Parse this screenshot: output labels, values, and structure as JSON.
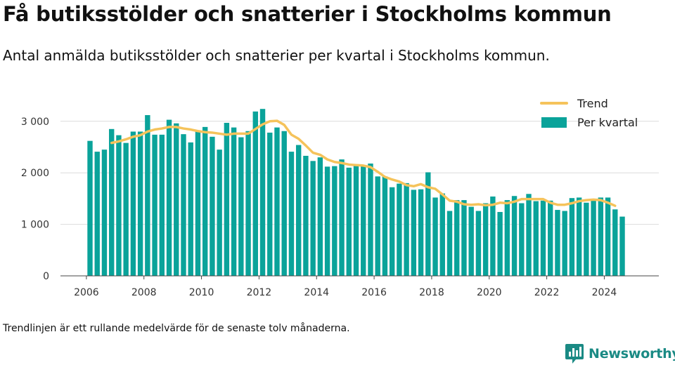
{
  "title": "Få butiksstölder och snatterier i Stockholms kommun",
  "subtitle": "Antal anmälda butiksstölder och snatterier per kvartal i Stockholms kommun.",
  "footnote": "Trendlinjen är ett rullande medelvärde för de senaste tolv månaderna.",
  "brand": {
    "name": "Newsworthy",
    "icon": "bar-chart-speech-bubble-icon",
    "color": "#1a8a84"
  },
  "chart_data": {
    "type": "bar",
    "x_tick_labels": [
      "2006",
      "2008",
      "2010",
      "2012",
      "2014",
      "2016",
      "2018",
      "2020",
      "2022",
      "2024"
    ],
    "y_tick_labels": [
      "0",
      "1 000",
      "2 000",
      "3 000"
    ],
    "ylim": [
      0,
      3450
    ],
    "grid": true,
    "legend_position": "top-right",
    "series": [
      {
        "name": "Per kvartal",
        "kind": "bar",
        "color": "#0aa39a",
        "categories": [
          "2006 Q1",
          "2006 Q2",
          "2006 Q3",
          "2006 Q4",
          "2007 Q1",
          "2007 Q2",
          "2007 Q3",
          "2007 Q4",
          "2008 Q1",
          "2008 Q2",
          "2008 Q3",
          "2008 Q4",
          "2009 Q1",
          "2009 Q2",
          "2009 Q3",
          "2009 Q4",
          "2010 Q1",
          "2010 Q2",
          "2010 Q3",
          "2010 Q4",
          "2011 Q1",
          "2011 Q2",
          "2011 Q3",
          "2011 Q4",
          "2012 Q1",
          "2012 Q2",
          "2012 Q3",
          "2012 Q4",
          "2013 Q1",
          "2013 Q2",
          "2013 Q3",
          "2013 Q4",
          "2014 Q1",
          "2014 Q2",
          "2014 Q3",
          "2014 Q4",
          "2015 Q1",
          "2015 Q2",
          "2015 Q3",
          "2015 Q4",
          "2016 Q1",
          "2016 Q2",
          "2016 Q3",
          "2016 Q4",
          "2017 Q1",
          "2017 Q2",
          "2017 Q3",
          "2017 Q4",
          "2018 Q1",
          "2018 Q2",
          "2018 Q3",
          "2018 Q4",
          "2019 Q1",
          "2019 Q2",
          "2019 Q3",
          "2019 Q4",
          "2020 Q1",
          "2020 Q2",
          "2020 Q3",
          "2020 Q4",
          "2021 Q1",
          "2021 Q2",
          "2021 Q3",
          "2021 Q4",
          "2022 Q1",
          "2022 Q2",
          "2022 Q3",
          "2022 Q4",
          "2023 Q1",
          "2023 Q2",
          "2023 Q3",
          "2023 Q4",
          "2024 Q1",
          "2024 Q2",
          "2024 Q3"
        ],
        "values": [
          2620,
          2410,
          2450,
          2850,
          2730,
          2580,
          2800,
          2800,
          3120,
          2740,
          2740,
          3030,
          2960,
          2750,
          2590,
          2820,
          2890,
          2700,
          2450,
          2970,
          2880,
          2690,
          2810,
          3190,
          3240,
          2780,
          2880,
          2810,
          2410,
          2540,
          2330,
          2230,
          2300,
          2120,
          2130,
          2260,
          2100,
          2140,
          2140,
          2180,
          1930,
          1930,
          1720,
          1790,
          1800,
          1670,
          1680,
          2010,
          1520,
          1600,
          1260,
          1470,
          1470,
          1340,
          1260,
          1410,
          1540,
          1240,
          1470,
          1550,
          1410,
          1590,
          1450,
          1460,
          1460,
          1280,
          1260,
          1510,
          1520,
          1420,
          1460,
          1520,
          1520,
          1290,
          1150
        ]
      },
      {
        "name": "Trend",
        "kind": "line",
        "color": "#f5c35b",
        "start_category": "2006 Q4",
        "values": [
          2580,
          2610,
          2650,
          2700,
          2730,
          2800,
          2840,
          2860,
          2890,
          2890,
          2860,
          2840,
          2810,
          2790,
          2780,
          2760,
          2740,
          2760,
          2760,
          2760,
          2850,
          2940,
          3000,
          3010,
          2930,
          2740,
          2660,
          2530,
          2390,
          2350,
          2260,
          2210,
          2190,
          2160,
          2150,
          2140,
          2110,
          2020,
          1920,
          1870,
          1830,
          1760,
          1740,
          1780,
          1720,
          1690,
          1580,
          1460,
          1440,
          1390,
          1380,
          1390,
          1370,
          1380,
          1420,
          1410,
          1440,
          1490,
          1490,
          1490,
          1490,
          1420,
          1380,
          1380,
          1410,
          1450,
          1470,
          1480,
          1470,
          1420,
          1360
        ]
      }
    ]
  }
}
